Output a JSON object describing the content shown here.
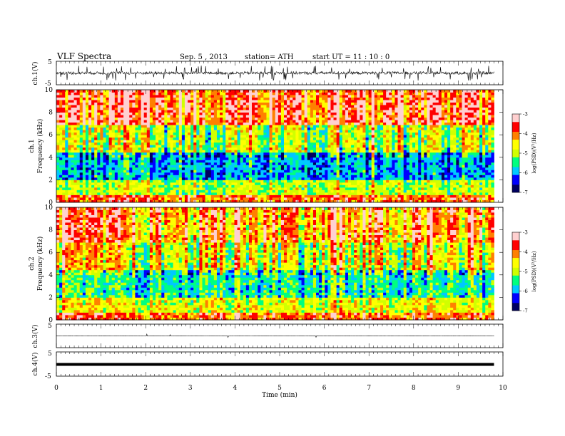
{
  "header": {
    "title": "VLF  Spectra",
    "date": "Sep. 5  , 2013",
    "station": "station= ATH",
    "start": "start  UT =   11 : 10 : 0"
  },
  "chart_data": [
    {
      "type": "line",
      "panel": "ch1-waveform",
      "ylabel": "ch.1(V)",
      "ylim": [
        -5,
        5
      ],
      "xlim": [
        0,
        10
      ],
      "y_ticklabels": [
        "5",
        "-5"
      ],
      "signal": "noisy waveform, about -0.5 to 0.5 V with spikes reaching about ±3 V, recording ends near 9.8 min"
    },
    {
      "type": "heatmap",
      "panel": "ch1-spectrogram",
      "ylabel": "ch.1\nFrequency  (kHz)",
      "ylim": [
        0,
        10
      ],
      "y_ticklabels": [
        "0",
        "2",
        "4",
        "6",
        "8",
        "10"
      ],
      "x_range": [
        0,
        9.8
      ],
      "colorbar": {
        "label": "log(PSD)(V²/Hz)",
        "range": [
          -7,
          -3
        ],
        "ticklabels": [
          "-3",
          "-4",
          "-5",
          "-6",
          "-7"
        ]
      },
      "bands": [
        {
          "f_khz": [
            0,
            0.6
          ],
          "log_psd": -4
        },
        {
          "f_khz": [
            0.6,
            2
          ],
          "log_psd": -5
        },
        {
          "f_khz": [
            2,
            4.5
          ],
          "log_psd": -6
        },
        {
          "f_khz": [
            4.5,
            7
          ],
          "log_psd": -5
        },
        {
          "f_khz": [
            7,
            10
          ],
          "log_psd": -3.8
        }
      ]
    },
    {
      "type": "heatmap",
      "panel": "ch2-spectrogram",
      "ylabel": "ch.2\nFrequency  (kHz)",
      "ylim": [
        0,
        10
      ],
      "y_ticklabels": [
        "0",
        "2",
        "4",
        "6",
        "8",
        "10"
      ],
      "x_range": [
        0,
        9.8
      ],
      "colorbar": {
        "label": "log(PSD)(V²/Hz)",
        "range": [
          -7,
          -3
        ],
        "ticklabels": [
          "-3",
          "-4",
          "-5",
          "-6",
          "-7"
        ]
      },
      "bands": [
        {
          "f_khz": [
            0,
            0.6
          ],
          "log_psd": -4
        },
        {
          "f_khz": [
            0.6,
            2
          ],
          "log_psd": -4.8
        },
        {
          "f_khz": [
            2,
            4.5
          ],
          "log_psd": -5.6
        },
        {
          "f_khz": [
            4.5,
            7
          ],
          "log_psd": -4.8
        },
        {
          "f_khz": [
            7,
            10
          ],
          "log_psd": -4.2
        }
      ]
    },
    {
      "type": "line",
      "panel": "ch3-waveform",
      "ylabel": "ch.3(V)",
      "ylim": [
        -5,
        5
      ],
      "xlim": [
        0,
        10
      ],
      "y_ticklabels": [
        "5"
      ],
      "signal": "flat trace near 0 V, ends near 9.8 min"
    },
    {
      "type": "line",
      "panel": "ch4-waveform",
      "ylabel": "ch.4(V)",
      "ylim": [
        -5,
        5
      ],
      "xlim": [
        0,
        10
      ],
      "y_ticklabels": [
        "5",
        "-5"
      ],
      "signal": "thick flat trace near 0 V, ends near 9.8 min"
    }
  ],
  "x_axis": {
    "label": "Time  (min)",
    "range": [
      0,
      10
    ],
    "ticklabels": [
      "0",
      "1",
      "2",
      "3",
      "4",
      "5",
      "6",
      "7",
      "8",
      "9",
      "10"
    ]
  },
  "colors": {
    "colormap": [
      "#000060",
      "#0000ff",
      "#00c8ff",
      "#00ff80",
      "#d0ff00",
      "#ffff00",
      "#ff8000",
      "#ff0000",
      "#ffd0d0"
    ],
    "trace": "#000000"
  }
}
